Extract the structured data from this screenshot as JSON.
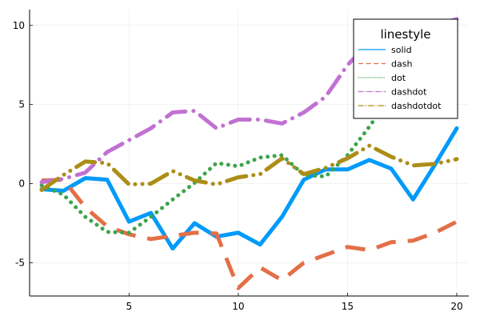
{
  "chart_data": {
    "type": "line",
    "title": "",
    "xlabel": "",
    "ylabel": "",
    "xlim": [
      0.45,
      20.55
    ],
    "ylim": [
      -7.1,
      11.0
    ],
    "xticks": [
      5,
      10,
      15,
      20
    ],
    "yticks": [
      -5,
      0,
      5,
      10
    ],
    "xtick_labels": [
      "5",
      "10",
      "15",
      "20"
    ],
    "ytick_labels": [
      "-5",
      "0",
      "5",
      "10"
    ],
    "grid": true,
    "legend": {
      "title": "linestyle",
      "position": "top-right"
    },
    "x": [
      1,
      2,
      3,
      4,
      5,
      6,
      7,
      8,
      9,
      10,
      11,
      12,
      13,
      14,
      15,
      16,
      17,
      18,
      19,
      20
    ],
    "series": [
      {
        "name": "solid",
        "dash": "solid",
        "color": "#009AFA",
        "values": [
          -0.35,
          -0.45,
          0.35,
          0.25,
          -2.4,
          -1.85,
          -4.1,
          -2.5,
          -3.35,
          -3.1,
          -3.85,
          -2.1,
          0.25,
          0.9,
          0.9,
          1.5,
          0.95,
          -1.0,
          1.2,
          3.5
        ]
      },
      {
        "name": "dash",
        "dash": "dash",
        "color": "#E36F47",
        "values": [
          0.2,
          0.25,
          -1.5,
          -2.7,
          -3.2,
          -3.5,
          -3.3,
          -3.1,
          -3.15,
          -6.6,
          -5.3,
          -6.1,
          -5.0,
          -4.5,
          -4.0,
          -4.2,
          -3.7,
          -3.6,
          -3.1,
          -2.4
        ]
      },
      {
        "name": "dot",
        "dash": "dot",
        "color": "#3EA44E",
        "values": [
          -0.1,
          -0.7,
          -2.1,
          -3.05,
          -3.1,
          -2.1,
          -1.0,
          0.05,
          1.3,
          1.1,
          1.65,
          1.8,
          0.55,
          0.45,
          1.8,
          3.6,
          5.6,
          6.8,
          8.4,
          9.5
        ]
      },
      {
        "name": "dashdot",
        "dash": "dashdot",
        "color": "#C271D2",
        "values": [
          0.1,
          0.3,
          0.7,
          2.0,
          2.75,
          3.5,
          4.5,
          4.6,
          3.5,
          4.05,
          4.05,
          3.8,
          4.5,
          5.5,
          7.5,
          8.9,
          9.5,
          9.7,
          10.0,
          10.4
        ]
      },
      {
        "name": "dashdotdot",
        "dash": "dashdotdot",
        "color": "#AC8D18",
        "values": [
          -0.4,
          0.55,
          1.4,
          1.3,
          -0.05,
          0.0,
          0.8,
          0.2,
          -0.05,
          0.4,
          0.6,
          1.6,
          0.6,
          1.0,
          1.6,
          2.4,
          1.7,
          1.15,
          1.25,
          1.55
        ]
      }
    ]
  }
}
